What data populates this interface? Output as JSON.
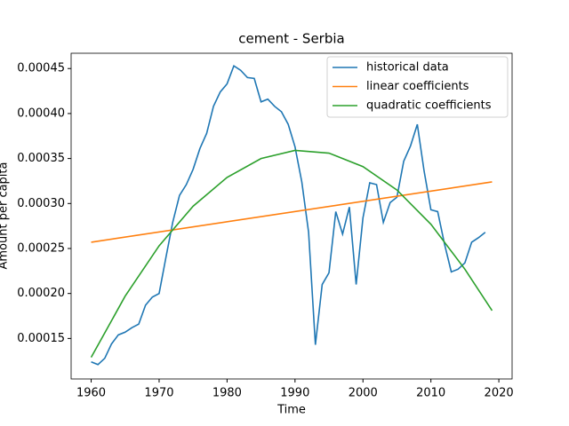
{
  "chart_data": {
    "type": "line",
    "title": "cement - Serbia",
    "x_label": "Time",
    "y_label": "Amount per capita",
    "xlim": [
      1957.05,
      2021.95
    ],
    "xticks": [
      1960,
      1970,
      1980,
      1990,
      2000,
      2010,
      2020
    ],
    "ylim": [
      0.000105,
      0.000467
    ],
    "yticks": [
      0.00015,
      {
        "value": 0.0002,
        "label": "0.00020"
      },
      0.00025,
      {
        "value": 0.0003,
        "label": "0.00030"
      },
      0.00035,
      {
        "value": 0.0004,
        "label": "0.00040"
      },
      0.00045
    ],
    "legend": "upper right",
    "grid": false,
    "series": [
      {
        "name": "historical data",
        "color": "#1f77b4",
        "x": [
          1960,
          1961,
          1962,
          1963,
          1964,
          1965,
          1966,
          1967,
          1968,
          1969,
          1970,
          1971,
          1972,
          1973,
          1974,
          1975,
          1976,
          1977,
          1978,
          1979,
          1980,
          1981,
          1982,
          1983,
          1984,
          1985,
          1986,
          1987,
          1988,
          1989,
          1990,
          1991,
          1992,
          1993,
          1994,
          1995,
          1996,
          1997,
          1998,
          1999,
          2000,
          2001,
          2002,
          2003,
          2004,
          2005,
          2006,
          2007,
          2008,
          2009,
          2010,
          2011,
          2012,
          2013,
          2014,
          2015,
          2016,
          2017,
          2018
        ],
        "values": [
          0.000124,
          0.000121,
          0.000128,
          0.000144,
          0.000154,
          0.000157,
          0.000162,
          0.000166,
          0.000187,
          0.000196,
          0.0002,
          0.00024,
          0.000279,
          0.000309,
          0.000321,
          0.000338,
          0.000361,
          0.000378,
          0.000408,
          0.000424,
          0.000433,
          0.000453,
          0.000448,
          0.00044,
          0.000439,
          0.000413,
          0.000416,
          0.000408,
          0.000402,
          0.000388,
          0.000363,
          0.000324,
          0.000268,
          0.000143,
          0.00021,
          0.000223,
          0.000291,
          0.000266,
          0.000296,
          0.00021,
          0.000284,
          0.000323,
          0.000321,
          0.000279,
          0.000301,
          0.000307,
          0.000347,
          0.000364,
          0.000388,
          0.000336,
          0.000293,
          0.000291,
          0.000255,
          0.000224,
          0.000227,
          0.000234,
          0.000257,
          0.000262,
          0.000268
        ]
      },
      {
        "name": "linear coefficients",
        "color": "#ff7f0e",
        "x": [
          1960,
          2019
        ],
        "values": [
          0.000257,
          0.000324
        ]
      },
      {
        "name": "quadratic coefficients",
        "color": "#2ca02c",
        "x": [
          1960,
          1965,
          1970,
          1975,
          1980,
          1985,
          1990,
          1995,
          2000,
          2005,
          2010,
          2015,
          2019
        ],
        "values": [
          0.000129,
          0.000197,
          0.000253,
          0.000297,
          0.000329,
          0.00035,
          0.000359,
          0.000356,
          0.000341,
          0.000315,
          0.000277,
          0.000227,
          0.000181
        ]
      }
    ]
  }
}
